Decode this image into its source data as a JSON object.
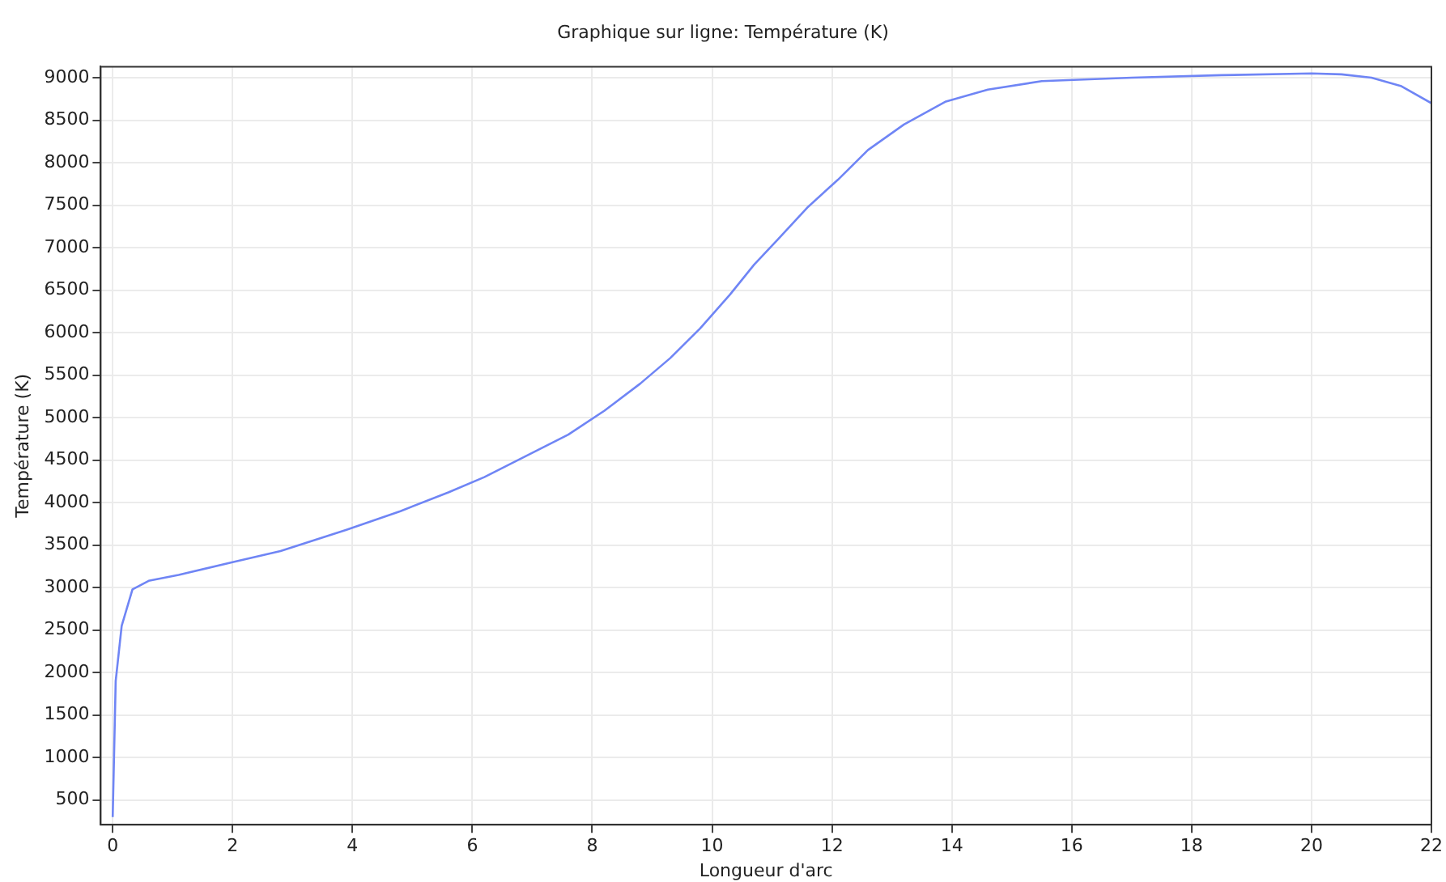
{
  "chart_data": {
    "type": "line",
    "title": "Graphique sur ligne: Température (K)",
    "xlabel": "Longueur d'arc",
    "ylabel": "Température (K)",
    "xlim": [
      -0.2,
      22
    ],
    "xticks": [
      0,
      2,
      4,
      6,
      8,
      10,
      12,
      14,
      16,
      18,
      20,
      22
    ],
    "ylim": [
      210,
      9130
    ],
    "yticks": [
      500,
      1000,
      1500,
      2000,
      2500,
      3000,
      3500,
      4000,
      4500,
      5000,
      5500,
      6000,
      6500,
      7000,
      7500,
      8000,
      8500,
      9000
    ],
    "grid": true,
    "legend": false,
    "marker": "none",
    "line_style": "solid",
    "series": [
      {
        "color": "#6f85f5",
        "x": [
          0,
          0.05,
          0.15,
          0.33,
          0.6,
          1.1,
          2,
          2.8,
          3.9,
          4.8,
          5.6,
          6.2,
          6.9,
          7.6,
          8.2,
          8.8,
          9.3,
          9.8,
          10.3,
          10.7,
          11.1,
          11.6,
          12.1,
          12.6,
          13.2,
          13.9,
          14.6,
          15.5,
          17,
          18.5,
          20,
          20.5,
          21,
          21.5,
          22
        ],
        "values": [
          300,
          1900,
          2550,
          2980,
          3080,
          3150,
          3300,
          3430,
          3680,
          3900,
          4120,
          4300,
          4550,
          4800,
          5080,
          5400,
          5700,
          6050,
          6450,
          6800,
          7100,
          7480,
          7800,
          8150,
          8450,
          8720,
          8860,
          8960,
          9000,
          9030,
          9050,
          9040,
          9000,
          8900,
          8700
        ]
      }
    ]
  }
}
